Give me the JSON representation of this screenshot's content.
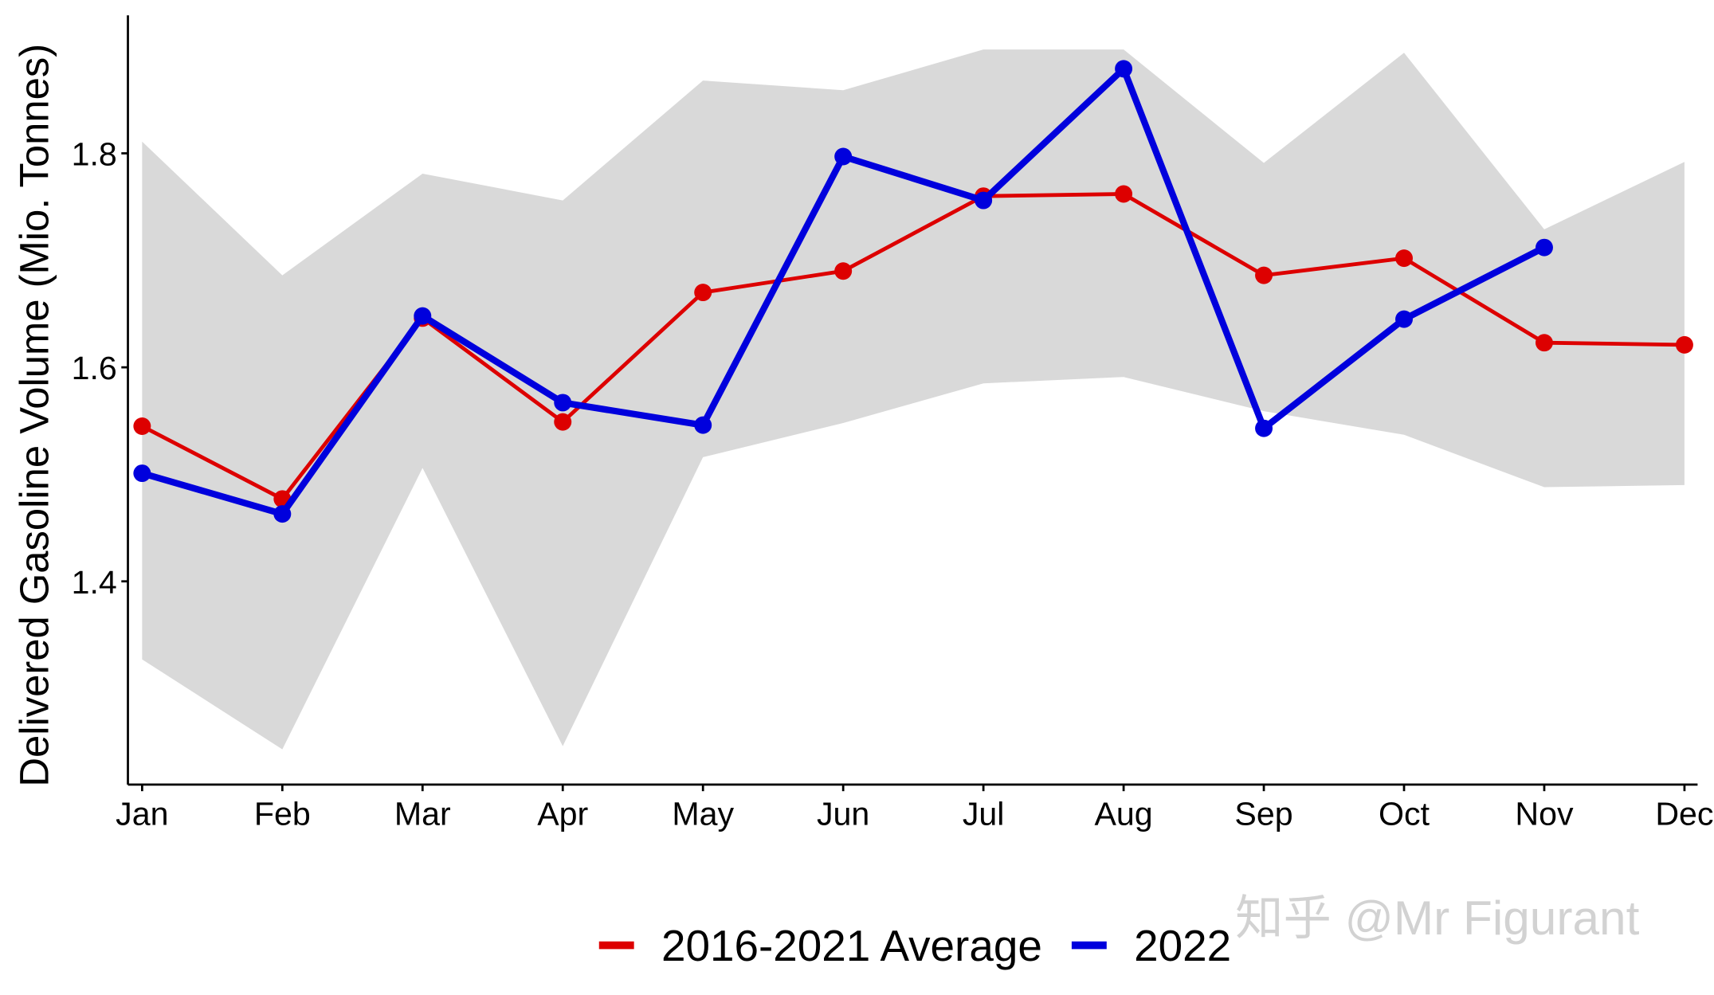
{
  "chart_data": {
    "type": "line",
    "y_label": "Delivered Gasoline Volume (Mio. Tonnes)",
    "categories": [
      "Jan",
      "Feb",
      "Mar",
      "Apr",
      "May",
      "Jun",
      "Jul",
      "Aug",
      "Sep",
      "Oct",
      "Nov",
      "Dec"
    ],
    "band": {
      "color": "#d9d9d9",
      "upper": [
        1.811,
        1.686,
        1.781,
        1.756,
        1.868,
        1.859,
        1.897,
        1.897,
        1.791,
        1.894,
        1.729,
        1.792
      ],
      "lower": [
        1.327,
        1.243,
        1.506,
        1.246,
        1.516,
        1.548,
        1.585,
        1.591,
        1.559,
        1.537,
        1.488,
        1.49
      ]
    },
    "series": [
      {
        "name": "2016-2021 Average",
        "color": "#dd0000",
        "values": [
          1.545,
          1.477,
          1.646,
          1.549,
          1.67,
          1.69,
          1.76,
          1.762,
          1.686,
          1.702,
          1.623,
          1.621
        ]
      },
      {
        "name": "2022",
        "color": "#0000dd",
        "values": [
          1.501,
          1.463,
          1.648,
          1.567,
          1.546,
          1.797,
          1.756,
          1.879,
          1.543,
          1.645,
          1.712,
          null
        ]
      }
    ],
    "ylim": [
      1.21,
      1.929
    ],
    "yticks": [
      1.4,
      1.6,
      1.8
    ],
    "grid": false,
    "legend": "bottom",
    "watermark": "知乎 @Mr Figurant"
  }
}
